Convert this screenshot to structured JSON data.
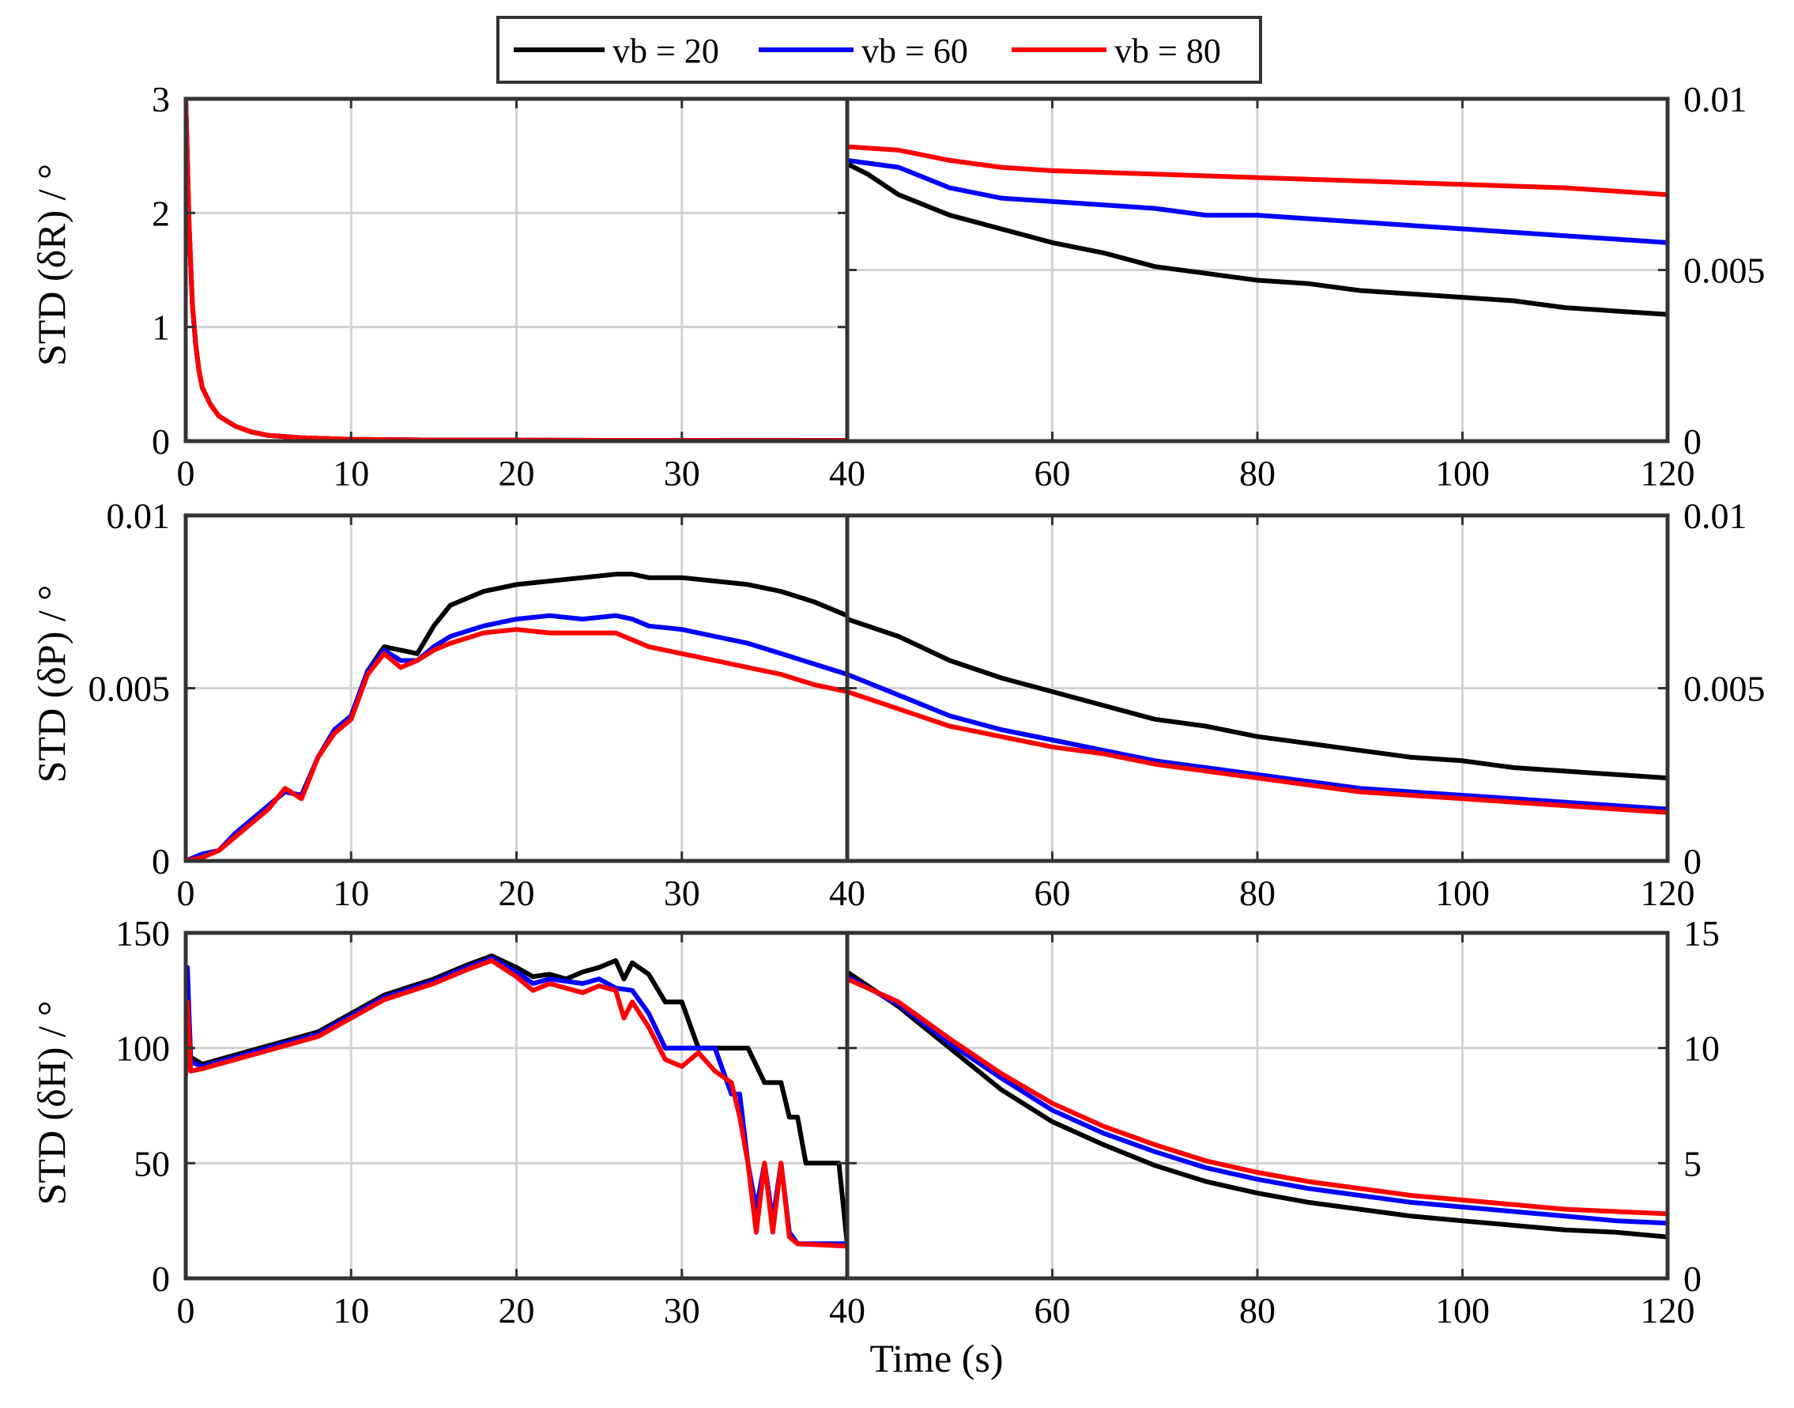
{
  "legend": [
    {
      "label": "vb = 20",
      "color": "#000000"
    },
    {
      "label": "vb = 60",
      "color": "#0000ff"
    },
    {
      "label": "vb = 80",
      "color": "#ff0000"
    }
  ],
  "xlabel": "Time (s)",
  "ylabels": [
    "STD (δR) / °",
    "STD (δP) / °",
    "STD (δH) / °"
  ],
  "chart_data": [
    {
      "type": "line",
      "id": "roll-left",
      "row": 0,
      "col": 0,
      "ylabel": "STD (δR) / °",
      "xlim": [
        0,
        40
      ],
      "ylim": [
        0,
        3
      ],
      "xticks": [
        0,
        10,
        20,
        30,
        40
      ],
      "xtick_labels": [
        "0",
        "10",
        "20",
        "30",
        "40"
      ],
      "yticks": [
        0,
        1,
        2,
        3
      ],
      "ytick_labels": [
        "0",
        "1",
        "2",
        "3"
      ],
      "grid": true,
      "series": [
        {
          "name": "vb = 20",
          "x": [
            0,
            0.2,
            0.4,
            0.6,
            0.8,
            1,
            1.5,
            2,
            3,
            4,
            5,
            7,
            10,
            15,
            20,
            30,
            40
          ],
          "y": [
            3,
            1.9,
            1.2,
            0.85,
            0.62,
            0.47,
            0.32,
            0.22,
            0.13,
            0.08,
            0.05,
            0.03,
            0.015,
            0.01,
            0.008,
            0.006,
            0.005
          ]
        },
        {
          "name": "vb = 60",
          "x": [
            0,
            0.2,
            0.4,
            0.6,
            0.8,
            1,
            1.5,
            2,
            3,
            4,
            5,
            7,
            10,
            15,
            20,
            30,
            40
          ],
          "y": [
            3,
            1.9,
            1.2,
            0.85,
            0.62,
            0.47,
            0.32,
            0.22,
            0.13,
            0.08,
            0.05,
            0.03,
            0.015,
            0.01,
            0.008,
            0.006,
            0.005
          ]
        },
        {
          "name": "vb = 80",
          "x": [
            0,
            0.2,
            0.4,
            0.6,
            0.8,
            1,
            1.5,
            2,
            3,
            4,
            5,
            7,
            10,
            15,
            20,
            30,
            40
          ],
          "y": [
            3,
            1.9,
            1.2,
            0.85,
            0.62,
            0.47,
            0.32,
            0.22,
            0.13,
            0.08,
            0.05,
            0.03,
            0.015,
            0.01,
            0.008,
            0.006,
            0.005
          ]
        }
      ]
    },
    {
      "type": "line",
      "id": "roll-right",
      "row": 0,
      "col": 1,
      "xlim": [
        40,
        120
      ],
      "ylim": [
        0,
        0.01
      ],
      "xticks": [
        60,
        80,
        100,
        120
      ],
      "xtick_labels": [
        "60",
        "80",
        "100",
        "120"
      ],
      "yticks": [
        0,
        0.005,
        0.01
      ],
      "ytick_labels": [
        "0",
        "0.005",
        "0.01"
      ],
      "grid": true,
      "series": [
        {
          "name": "vb = 20",
          "x": [
            40,
            42,
            45,
            50,
            55,
            60,
            65,
            70,
            75,
            80,
            85,
            90,
            95,
            100,
            105,
            110,
            115,
            120
          ],
          "y": [
            0.0081,
            0.0078,
            0.0072,
            0.0066,
            0.0062,
            0.0058,
            0.0055,
            0.0051,
            0.0049,
            0.0047,
            0.0046,
            0.0044,
            0.0043,
            0.0042,
            0.0041,
            0.0039,
            0.0038,
            0.0037
          ]
        },
        {
          "name": "vb = 60",
          "x": [
            40,
            45,
            50,
            55,
            60,
            65,
            70,
            75,
            80,
            85,
            90,
            95,
            100,
            105,
            110,
            115,
            120
          ],
          "y": [
            0.0082,
            0.008,
            0.0074,
            0.0071,
            0.007,
            0.0069,
            0.0068,
            0.0066,
            0.0066,
            0.0065,
            0.0064,
            0.0063,
            0.0062,
            0.0061,
            0.006,
            0.0059,
            0.0058
          ]
        },
        {
          "name": "vb = 80",
          "x": [
            40,
            45,
            50,
            55,
            60,
            70,
            80,
            90,
            100,
            110,
            120
          ],
          "y": [
            0.0086,
            0.0085,
            0.0082,
            0.008,
            0.0079,
            0.0078,
            0.0077,
            0.0076,
            0.0075,
            0.0074,
            0.0072
          ]
        }
      ]
    },
    {
      "type": "line",
      "id": "pitch-left",
      "row": 1,
      "col": 0,
      "ylabel": "STD (δP) / °",
      "xlim": [
        0,
        40
      ],
      "ylim": [
        0,
        0.01
      ],
      "xticks": [
        0,
        10,
        20,
        30,
        40
      ],
      "xtick_labels": [
        "0",
        "10",
        "20",
        "30",
        "40"
      ],
      "yticks": [
        0,
        0.005,
        0.01
      ],
      "ytick_labels": [
        "0",
        "0.005",
        "0.01"
      ],
      "grid": true,
      "series": [
        {
          "name": "vb = 20",
          "x": [
            0,
            1,
            2,
            3,
            4,
            5,
            6,
            7,
            8,
            9,
            10,
            11,
            12,
            13,
            14,
            15,
            16,
            18,
            20,
            22,
            24,
            26,
            27,
            28,
            30,
            32,
            34,
            36,
            38,
            40
          ],
          "y": [
            0,
            0.0002,
            0.0003,
            0.0008,
            0.0012,
            0.0016,
            0.002,
            0.0019,
            0.003,
            0.0038,
            0.0042,
            0.0055,
            0.0062,
            0.0061,
            0.006,
            0.0068,
            0.0074,
            0.0078,
            0.008,
            0.0081,
            0.0082,
            0.0083,
            0.0083,
            0.0082,
            0.0082,
            0.0081,
            0.008,
            0.0078,
            0.0075,
            0.0071
          ]
        },
        {
          "name": "vb = 60",
          "x": [
            0,
            1,
            2,
            3,
            4,
            5,
            6,
            7,
            8,
            9,
            10,
            11,
            12,
            13,
            14,
            15,
            16,
            18,
            20,
            22,
            24,
            26,
            27,
            28,
            30,
            32,
            34,
            36,
            38,
            40
          ],
          "y": [
            0,
            0.0002,
            0.0003,
            0.0008,
            0.0012,
            0.0016,
            0.002,
            0.0019,
            0.003,
            0.0038,
            0.0042,
            0.0055,
            0.0061,
            0.0058,
            0.0058,
            0.0062,
            0.0065,
            0.0068,
            0.007,
            0.0071,
            0.007,
            0.0071,
            0.007,
            0.0068,
            0.0067,
            0.0065,
            0.0063,
            0.006,
            0.0057,
            0.0054
          ]
        },
        {
          "name": "vb = 80",
          "x": [
            0,
            1,
            2,
            3,
            4,
            5,
            6,
            7,
            8,
            9,
            10,
            11,
            12,
            13,
            14,
            15,
            16,
            18,
            20,
            22,
            24,
            26,
            27,
            28,
            30,
            32,
            34,
            36,
            38,
            40
          ],
          "y": [
            0,
            0.0001,
            0.0003,
            0.0007,
            0.0011,
            0.0015,
            0.0021,
            0.0018,
            0.003,
            0.0037,
            0.0041,
            0.0054,
            0.006,
            0.0056,
            0.0058,
            0.0061,
            0.0063,
            0.0066,
            0.0067,
            0.0066,
            0.0066,
            0.0066,
            0.0064,
            0.0062,
            0.006,
            0.0058,
            0.0056,
            0.0054,
            0.0051,
            0.0049
          ]
        }
      ]
    },
    {
      "type": "line",
      "id": "pitch-right",
      "row": 1,
      "col": 1,
      "xlim": [
        40,
        120
      ],
      "ylim": [
        0,
        0.01
      ],
      "xticks": [
        60,
        80,
        100,
        120
      ],
      "xtick_labels": [
        "60",
        "80",
        "100",
        "120"
      ],
      "yticks": [
        0,
        0.005,
        0.01
      ],
      "ytick_labels": [
        "0",
        "0.005",
        "0.01"
      ],
      "grid": true,
      "series": [
        {
          "name": "vb = 20",
          "x": [
            40,
            45,
            50,
            55,
            60,
            65,
            70,
            75,
            80,
            85,
            90,
            95,
            100,
            105,
            110,
            115,
            120
          ],
          "y": [
            0.007,
            0.0065,
            0.0058,
            0.0053,
            0.0049,
            0.0045,
            0.0041,
            0.0039,
            0.0036,
            0.0034,
            0.0032,
            0.003,
            0.0029,
            0.0027,
            0.0026,
            0.0025,
            0.0024
          ]
        },
        {
          "name": "vb = 60",
          "x": [
            40,
            45,
            50,
            55,
            60,
            65,
            70,
            75,
            80,
            85,
            90,
            95,
            100,
            105,
            110,
            115,
            120
          ],
          "y": [
            0.0054,
            0.0048,
            0.0042,
            0.0038,
            0.0035,
            0.0032,
            0.0029,
            0.0027,
            0.0025,
            0.0023,
            0.0021,
            0.002,
            0.0019,
            0.0018,
            0.0017,
            0.0016,
            0.0015
          ]
        },
        {
          "name": "vb = 80",
          "x": [
            40,
            45,
            50,
            55,
            60,
            65,
            70,
            75,
            80,
            85,
            90,
            95,
            100,
            105,
            110,
            115,
            120
          ],
          "y": [
            0.0049,
            0.0044,
            0.0039,
            0.0036,
            0.0033,
            0.0031,
            0.0028,
            0.0026,
            0.0024,
            0.0022,
            0.002,
            0.0019,
            0.0018,
            0.0017,
            0.0016,
            0.0015,
            0.0014
          ]
        }
      ]
    },
    {
      "type": "line",
      "id": "heading-left",
      "row": 2,
      "col": 0,
      "ylabel": "STD (δH) / °",
      "xlim": [
        0,
        40
      ],
      "ylim": [
        0,
        150
      ],
      "xticks": [
        0,
        10,
        20,
        30,
        40
      ],
      "xtick_labels": [
        "0",
        "10",
        "20",
        "30",
        "40"
      ],
      "yticks": [
        0,
        50,
        100,
        150
      ],
      "ytick_labels": [
        "0",
        "50",
        "100",
        "150"
      ],
      "grid": true,
      "series": [
        {
          "name": "vb = 20",
          "x": [
            0,
            0.1,
            0.3,
            1,
            3,
            5,
            8,
            10,
            12,
            15,
            17,
            18.5,
            20,
            21,
            22,
            23,
            24,
            25,
            26,
            26.5,
            27,
            28,
            29,
            30,
            30.5,
            31,
            33,
            34,
            35,
            36,
            36.5,
            37,
            37.5,
            38,
            39,
            39.5,
            40
          ],
          "y": [
            88,
            130,
            96,
            93,
            97,
            101,
            107,
            115,
            123,
            130,
            136,
            140,
            135,
            131,
            132,
            130,
            133,
            135,
            138,
            130,
            137,
            132,
            120,
            120,
            110,
            100,
            100,
            100,
            85,
            85,
            70,
            70,
            50,
            50,
            50,
            50,
            15
          ]
        },
        {
          "name": "vb = 60",
          "x": [
            0,
            0.1,
            0.3,
            1,
            3,
            5,
            8,
            10,
            12,
            15,
            17,
            18.5,
            20,
            21,
            22,
            23,
            24,
            25,
            26,
            27,
            28,
            29,
            30,
            31,
            32,
            33,
            33.5,
            34,
            34.5,
            35,
            35.5,
            36,
            36.5,
            37,
            40
          ],
          "y": [
            90,
            135,
            94,
            92,
            96,
            100,
            106,
            114,
            122,
            129,
            135,
            139,
            133,
            128,
            130,
            129,
            128,
            130,
            126,
            125,
            115,
            100,
            100,
            100,
            100,
            80,
            80,
            50,
            30,
            50,
            25,
            50,
            20,
            15,
            15
          ]
        },
        {
          "name": "vb = 80",
          "x": [
            0,
            0.1,
            0.3,
            1,
            3,
            5,
            8,
            10,
            12,
            15,
            17,
            18.5,
            20,
            21,
            22,
            23,
            24,
            25,
            26,
            26.5,
            27,
            28,
            29,
            30,
            31,
            32,
            33,
            33.5,
            34,
            34.5,
            35,
            35.5,
            36,
            36.5,
            37,
            40
          ],
          "y": [
            88,
            120,
            90,
            91,
            95,
            99,
            105,
            113,
            121,
            128,
            134,
            138,
            131,
            125,
            128,
            126,
            124,
            127,
            125,
            113,
            120,
            109,
            95,
            92,
            98,
            90,
            85,
            70,
            50,
            20,
            50,
            20,
            50,
            18,
            15,
            14
          ]
        }
      ]
    },
    {
      "type": "line",
      "id": "heading-right",
      "row": 2,
      "col": 1,
      "xlim": [
        40,
        120
      ],
      "ylim": [
        0,
        15
      ],
      "xticks": [
        60,
        80,
        100,
        120
      ],
      "xtick_labels": [
        "60",
        "80",
        "100",
        "120"
      ],
      "yticks": [
        0,
        5,
        10,
        15
      ],
      "ytick_labels": [
        "0",
        "5",
        "10",
        "15"
      ],
      "grid": true,
      "series": [
        {
          "name": "vb = 20",
          "x": [
            40,
            45,
            50,
            55,
            60,
            65,
            70,
            75,
            80,
            85,
            90,
            95,
            100,
            105,
            110,
            115,
            120
          ],
          "y": [
            13.3,
            11.8,
            10.0,
            8.2,
            6.8,
            5.8,
            4.9,
            4.2,
            3.7,
            3.3,
            3.0,
            2.7,
            2.5,
            2.3,
            2.1,
            2.0,
            1.8
          ]
        },
        {
          "name": "vb = 60",
          "x": [
            40,
            45,
            50,
            55,
            60,
            65,
            70,
            75,
            80,
            85,
            90,
            95,
            100,
            105,
            110,
            115,
            120
          ],
          "y": [
            13.1,
            11.9,
            10.2,
            8.7,
            7.3,
            6.3,
            5.5,
            4.8,
            4.3,
            3.9,
            3.6,
            3.3,
            3.1,
            2.9,
            2.7,
            2.5,
            2.4
          ]
        },
        {
          "name": "vb = 80",
          "x": [
            40,
            45,
            50,
            55,
            60,
            65,
            70,
            75,
            80,
            85,
            90,
            95,
            100,
            105,
            110,
            115,
            120
          ],
          "y": [
            13.0,
            12.0,
            10.4,
            8.9,
            7.6,
            6.6,
            5.8,
            5.1,
            4.6,
            4.2,
            3.9,
            3.6,
            3.4,
            3.2,
            3.0,
            2.9,
            2.8
          ]
        }
      ]
    }
  ]
}
